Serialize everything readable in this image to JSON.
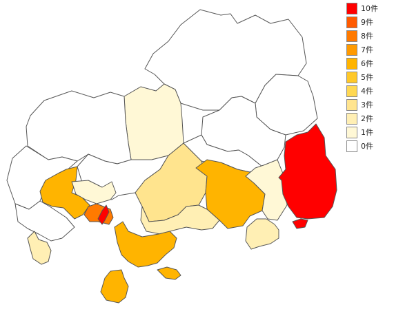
{
  "legend": [
    {
      "label": "10件",
      "color": "#ff0000"
    },
    {
      "label": "9件",
      "color": "#ff5a00"
    },
    {
      "label": "8件",
      "color": "#ff7a00"
    },
    {
      "label": "7件",
      "color": "#ff9a00"
    },
    {
      "label": "6件",
      "color": "#ffb400"
    },
    {
      "label": "5件",
      "color": "#ffc828"
    },
    {
      "label": "4件",
      "color": "#ffd852"
    },
    {
      "label": "3件",
      "color": "#ffe48e"
    },
    {
      "label": "2件",
      "color": "#ffefb4"
    },
    {
      "label": "1件",
      "color": "#fff8d6"
    },
    {
      "label": "0件",
      "color": "#ffffff"
    }
  ],
  "regions": [
    {
      "name": "north-central",
      "count": 0
    },
    {
      "name": "northeast-1",
      "count": 0
    },
    {
      "name": "northeast-2",
      "count": 0
    },
    {
      "name": "north-1",
      "count": 1
    },
    {
      "name": "northwest",
      "count": 0
    },
    {
      "name": "west-coast",
      "count": 0
    },
    {
      "name": "southwest",
      "count": 0
    },
    {
      "name": "west-mid",
      "count": 6
    },
    {
      "name": "central-north",
      "count": 0
    },
    {
      "name": "central-2",
      "count": 1
    },
    {
      "name": "central-3",
      "count": 3
    },
    {
      "name": "mid-east",
      "count": 0
    },
    {
      "name": "central-big",
      "count": 6
    },
    {
      "name": "east-2",
      "count": 1
    },
    {
      "name": "east-largest",
      "count": 10
    },
    {
      "name": "coast-1",
      "count": 8
    },
    {
      "name": "coast-2",
      "count": 10
    },
    {
      "name": "coast-3",
      "count": 2
    },
    {
      "name": "south-coast",
      "count": 6
    },
    {
      "name": "southeast-coast",
      "count": 2
    },
    {
      "name": "islands-1",
      "count": 6
    },
    {
      "name": "islands-2",
      "count": 6
    },
    {
      "name": "islands-3",
      "count": 2
    },
    {
      "name": "islands-4",
      "count": 10
    }
  ]
}
